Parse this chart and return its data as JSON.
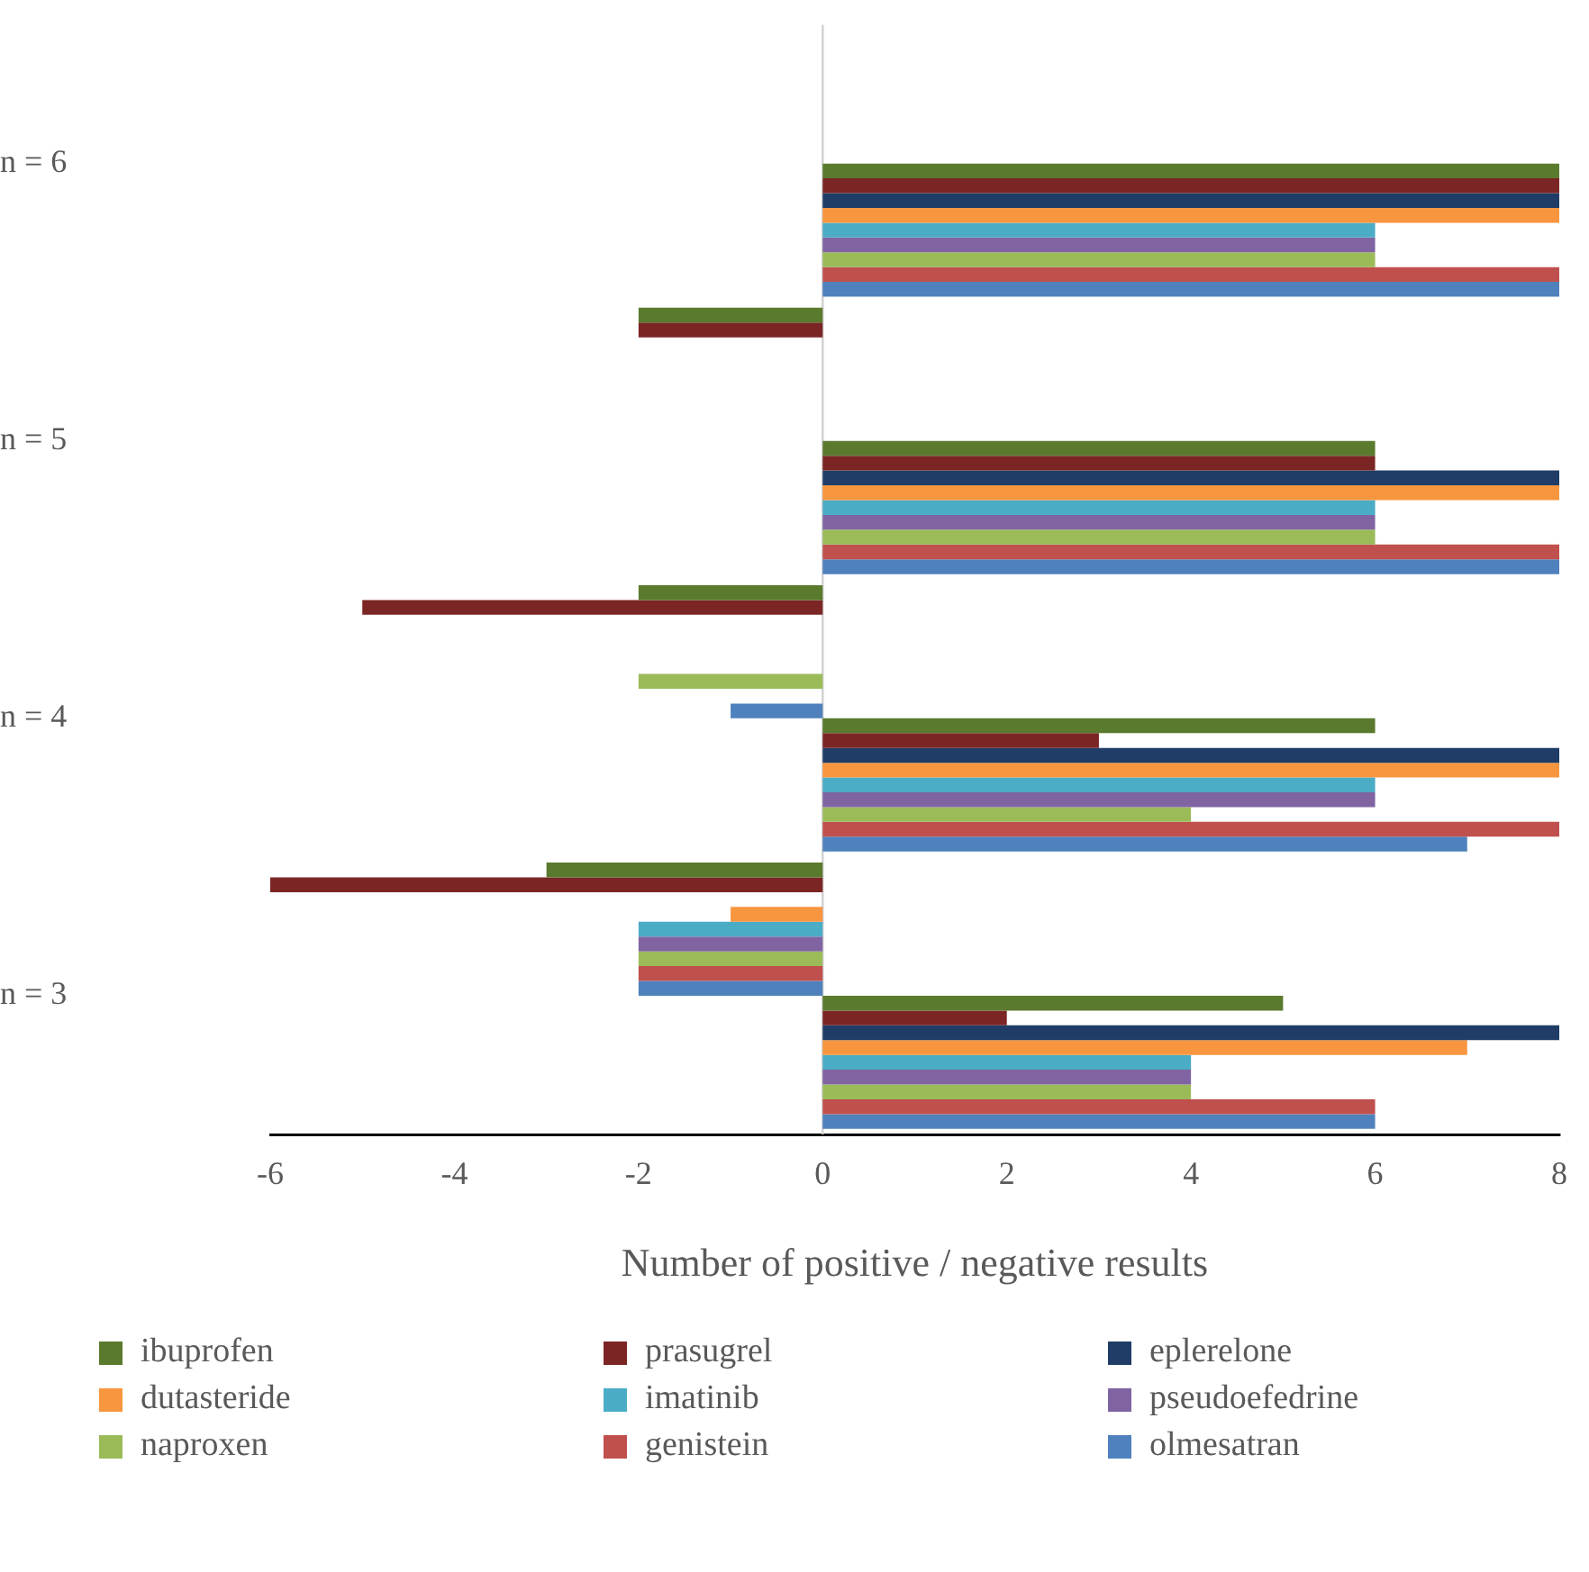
{
  "chart_data": {
    "type": "bar",
    "orientation": "horizontal",
    "xlabel": "Number of positive / negative results",
    "categories": [
      "n = 6",
      "n = 5",
      "n = 4",
      "n = 3"
    ],
    "ref_lines": [
      {
        "axis": "x",
        "value": 0,
        "color": "#d0d0d0"
      }
    ],
    "xlim": [
      -6,
      8
    ],
    "xticks": [
      -6,
      -4,
      -2,
      0,
      2,
      4,
      6,
      8
    ],
    "grid": false,
    "legend": "bottom",
    "series": [
      {
        "color": "#5a7a2e",
        "values": [
          null,
          -2,
          -2,
          -3
        ]
      },
      {
        "color": "#7b2525",
        "values": [
          null,
          -2,
          -5,
          -6
        ]
      },
      {
        "color": "#1f3d66",
        "values": [
          null,
          null,
          null,
          null
        ]
      },
      {
        "color": "#f7963f",
        "values": [
          null,
          null,
          null,
          -1
        ]
      },
      {
        "color": "#4bacc6",
        "values": [
          null,
          null,
          null,
          -2
        ]
      },
      {
        "color": "#8064a2",
        "values": [
          null,
          null,
          null,
          -2
        ]
      },
      {
        "color": "#9bbb59",
        "values": [
          null,
          null,
          -2,
          -2
        ]
      },
      {
        "color": "#c0504d",
        "values": [
          null,
          null,
          null,
          -2
        ]
      },
      {
        "color": "#4f81bd",
        "values": [
          null,
          null,
          -1,
          -2
        ]
      },
      {
        "name": "ibuprofen",
        "color": "#5a7a2e",
        "values": [
          8,
          6,
          6,
          5
        ]
      },
      {
        "name": "prasugrel",
        "color": "#7b2525",
        "values": [
          8,
          6,
          3,
          2
        ]
      },
      {
        "name": "eplerelone",
        "color": "#1f3d66",
        "values": [
          8,
          8,
          8,
          8
        ]
      },
      {
        "name": "dutasteride",
        "color": "#f7963f",
        "values": [
          8,
          8,
          8,
          7
        ]
      },
      {
        "name": "imatinib",
        "color": "#4bacc6",
        "values": [
          6,
          6,
          6,
          4
        ]
      },
      {
        "name": "pseudoefedrine",
        "color": "#8064a2",
        "values": [
          6,
          6,
          6,
          4
        ]
      },
      {
        "name": "naproxen",
        "color": "#9bbb59",
        "values": [
          6,
          6,
          4,
          4
        ]
      },
      {
        "name": "genistein",
        "color": "#c0504d",
        "values": [
          8,
          8,
          8,
          6
        ]
      },
      {
        "name": "olmesatran",
        "color": "#4f81bd",
        "values": [
          8,
          8,
          7,
          6
        ]
      }
    ]
  }
}
